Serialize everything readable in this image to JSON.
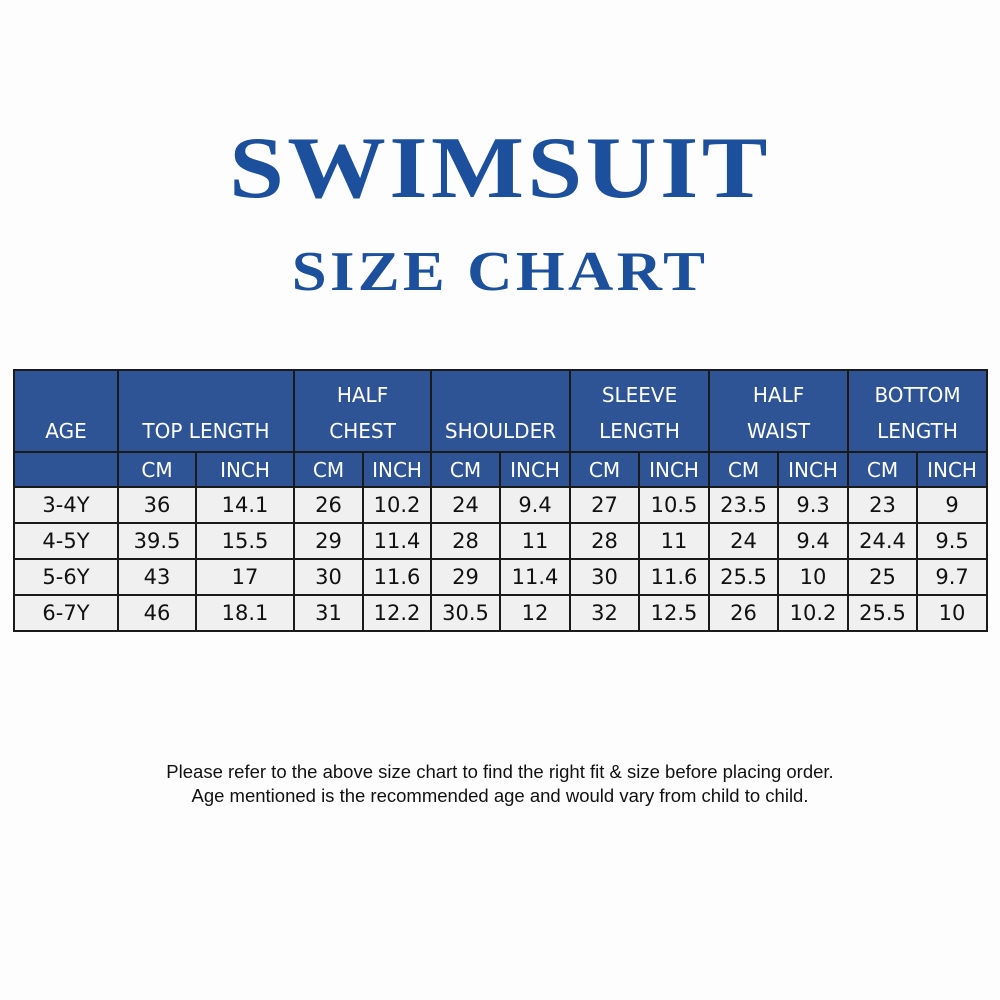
{
  "title": "SWIMSUIT",
  "subtitle": "SIZE CHART",
  "table": {
    "header_groups": [
      {
        "label_line1": "",
        "label_line2": "AGE"
      },
      {
        "label_line1": "",
        "label_line2": "TOP LENGTH"
      },
      {
        "label_line1": "HALF",
        "label_line2": "CHEST"
      },
      {
        "label_line1": "",
        "label_line2": "SHOULDER"
      },
      {
        "label_line1": "SLEEVE",
        "label_line2": "LENGTH"
      },
      {
        "label_line1": "HALF",
        "label_line2": "WAIST"
      },
      {
        "label_line1": "BOTTOM",
        "label_line2": "LENGTH"
      }
    ],
    "unit_cm": "CM",
    "unit_inch": "INCH",
    "rows": [
      [
        "3-4Y",
        "36",
        "14.1",
        "26",
        "10.2",
        "24",
        "9.4",
        "27",
        "10.5",
        "23.5",
        "9.3",
        "23",
        "9"
      ],
      [
        "4-5Y",
        "39.5",
        "15.5",
        "29",
        "11.4",
        "28",
        "11",
        "28",
        "11",
        "24",
        "9.4",
        "24.4",
        "9.5"
      ],
      [
        "5-6Y",
        "43",
        "17",
        "30",
        "11.6",
        "29",
        "11.4",
        "30",
        "11.6",
        "25.5",
        "10",
        "25",
        "9.7"
      ],
      [
        "6-7Y",
        "46",
        "18.1",
        "31",
        "12.2",
        "30.5",
        "12",
        "32",
        "12.5",
        "26",
        "10.2",
        "25.5",
        "10"
      ]
    ]
  },
  "notes": [
    "Please refer to the above size chart to find the right fit & size before placing order.",
    "Age mentioned is the recommended age and would vary from child to child."
  ],
  "colors": {
    "title": "#1c4f9c",
    "header_bg": "#2f5496",
    "cell_bg": "#f0f0f0"
  }
}
